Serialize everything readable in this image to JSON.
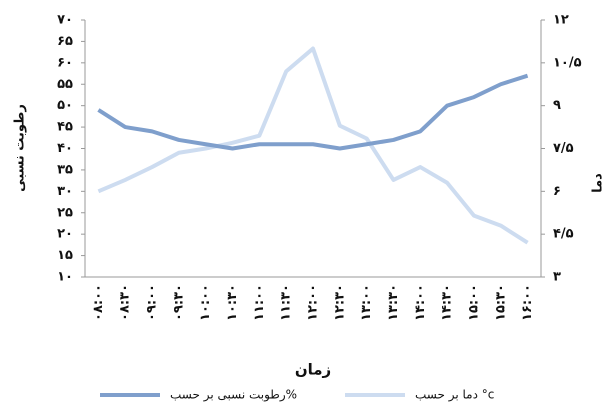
{
  "chart_data": {
    "type": "line",
    "x_label": "زمان",
    "y_label": "رطوبت نسبی",
    "y2_label": "دما",
    "categories": [
      "۰۸:۰۰",
      "۰۸:۳۰",
      "۰۹:۰۰",
      "۰۹:۳۰",
      "۱۰:۰۰",
      "۱۰:۳۰",
      "۱۱:۰۰",
      "۱۱:۳۰",
      "۱۲:۰۰",
      "۱۲:۳۰",
      "۱۳:۰۰",
      "۱۳:۳۰",
      "۱۴:۰۰",
      "۱۴:۳۰",
      "۱۵:۰۰",
      "۱۵:۳۰",
      "۱۶:۰۰"
    ],
    "series": [
      {
        "name": "رطوبت نسبی بر حسب%",
        "color": "#7f9fcc",
        "values": [
          49,
          45,
          44,
          42,
          41,
          40,
          41,
          41,
          41,
          40,
          41,
          42,
          44,
          50,
          52,
          55,
          57
        ]
      },
      {
        "name": "دما بر حسب °c",
        "color": "#cddcf0",
        "axis": "y2",
        "values": [
          6.0,
          6.4,
          6.85,
          7.35,
          7.5,
          7.7,
          7.95,
          10.2,
          11.0,
          8.3,
          7.85,
          6.4,
          6.85,
          6.3,
          5.15,
          4.8,
          4.2
        ]
      }
    ],
    "ylim": [
      10,
      70
    ],
    "yticks": [
      {
        "value": 10,
        "label": "۱۰"
      },
      {
        "value": 15,
        "label": "۱۵"
      },
      {
        "value": 20,
        "label": "۲۰"
      },
      {
        "value": 25,
        "label": "۲۵"
      },
      {
        "value": 30,
        "label": "۳۰"
      },
      {
        "value": 35,
        "label": "۳۵"
      },
      {
        "value": 40,
        "label": "۴۰"
      },
      {
        "value": 45,
        "label": "۴۵"
      },
      {
        "value": 50,
        "label": "۵۰"
      },
      {
        "value": 55,
        "label": "۵۵"
      },
      {
        "value": 60,
        "label": "۶۰"
      },
      {
        "value": 65,
        "label": "۶۵"
      },
      {
        "value": 70,
        "label": "۷۰"
      }
    ],
    "y2lim": [
      3,
      12
    ],
    "y2ticks": [
      {
        "value": 3,
        "label": "۳"
      },
      {
        "value": 4.5,
        "label": "۴/۵"
      },
      {
        "value": 6,
        "label": "۶"
      },
      {
        "value": 7.5,
        "label": "۷/۵"
      },
      {
        "value": 9,
        "label": "۹"
      },
      {
        "value": 10.5,
        "label": "۱۰/۵"
      },
      {
        "value": 12,
        "label": "۱۲"
      }
    ],
    "legend": "bottom"
  }
}
